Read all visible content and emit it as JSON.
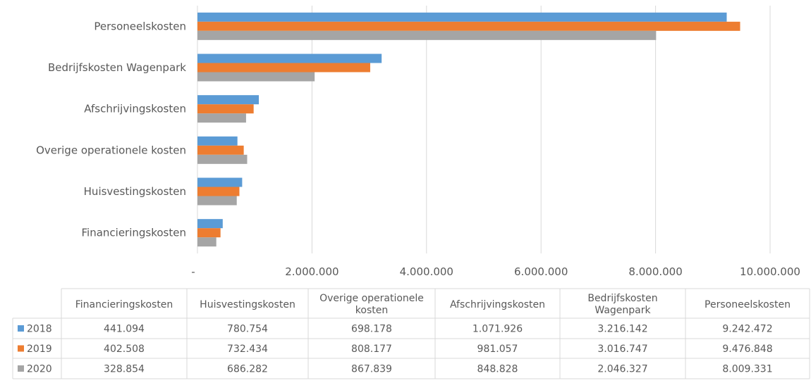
{
  "chart_data": {
    "type": "bar",
    "orientation": "horizontal",
    "categories": [
      "Financieringskosten",
      "Huisvestingskosten",
      "Overige operationele kosten",
      "Afschrijvingskosten",
      "Bedrijfskosten Wagenpark",
      "Personeelskosten"
    ],
    "table_headers": [
      [
        "Financieringskosten"
      ],
      [
        "Huisvestingskosten"
      ],
      [
        "Overige operationele",
        "kosten"
      ],
      [
        "Afschrijvingskosten"
      ],
      [
        "Bedrijfskosten",
        "Wagenpark"
      ],
      [
        "Personeelskosten"
      ]
    ],
    "series": [
      {
        "name": "2018",
        "color": "#5B9BD5",
        "values": [
          441094,
          780754,
          698178,
          1071926,
          3216142,
          9242472
        ],
        "display": [
          "441.094",
          "780.754",
          "698.178",
          "1.071.926",
          "3.216.142",
          "9.242.472"
        ]
      },
      {
        "name": "2019",
        "color": "#ED7D31",
        "values": [
          402508,
          732434,
          808177,
          981057,
          3016747,
          9476848
        ],
        "display": [
          "402.508",
          "732.434",
          "808.177",
          "981.057",
          "3.016.747",
          "9.476.848"
        ]
      },
      {
        "name": "2020",
        "color": "#A5A5A5",
        "values": [
          328854,
          686282,
          867839,
          848828,
          2046327,
          8009331
        ],
        "display": [
          "328.854",
          "686.282",
          "867.839",
          "848.828",
          "2.046.327",
          "8.009.331"
        ]
      }
    ],
    "xlim": [
      0,
      10000000
    ],
    "xticks": [
      0,
      2000000,
      4000000,
      6000000,
      8000000,
      10000000
    ],
    "xtick_labels": [
      "-",
      "2.000.000",
      "4.000.000",
      "6.000.000",
      "8.000.000",
      "10.000.000"
    ],
    "grid": "vertical",
    "title": "",
    "xlabel": "",
    "ylabel": "",
    "legend": "data table"
  }
}
